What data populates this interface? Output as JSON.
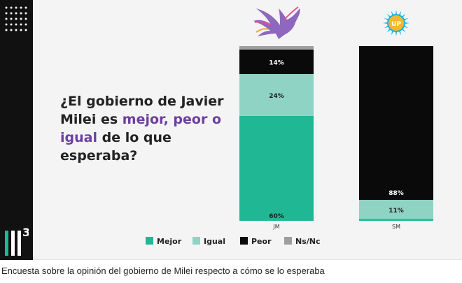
{
  "question": {
    "line1": "¿El gobierno de Javier",
    "line2_plain": "Milei es ",
    "line2_highlight": "mejor, peor o",
    "line3_highlight": "igual",
    "line3_plain": " de lo que",
    "line4": "esperaba?"
  },
  "brand": {
    "mark_text": "3",
    "highlight_color": "#6b3fa0"
  },
  "icons": {
    "jm_logo": "phoenix-bird-icon",
    "sm_logo": "up-sun-icon",
    "sm_logo_text": "UP"
  },
  "caption": "Encuesta sobre la opinión del gobierno de Milei respecto a cómo se lo esperaba",
  "chart_data": {
    "type": "bar",
    "stacked": true,
    "categories": [
      "JM",
      "SM"
    ],
    "series": [
      {
        "name": "Mejor",
        "values": [
          60,
          1
        ],
        "color": "#20b894",
        "labels": [
          "60%",
          ""
        ]
      },
      {
        "name": "Igual",
        "values": [
          24,
          11
        ],
        "color": "#8fd3c4",
        "labels": [
          "24%",
          "11%"
        ]
      },
      {
        "name": "Peor",
        "values": [
          14,
          88
        ],
        "color": "#0a0a0a",
        "labels": [
          "14%",
          "88%"
        ]
      },
      {
        "name": "Ns/Nc",
        "values": [
          2,
          0
        ],
        "color": "#9e9e9e",
        "labels": [
          "",
          ""
        ]
      }
    ],
    "ylim": [
      0,
      100
    ],
    "legend_position": "bottom"
  }
}
